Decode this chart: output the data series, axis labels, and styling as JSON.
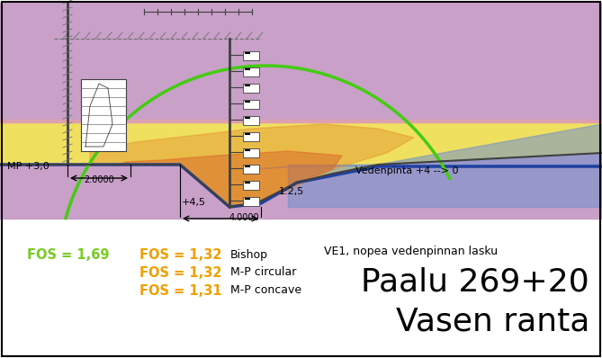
{
  "title_line1": "Vasen ranta",
  "title_line2": "Paalu 269+20",
  "subtitle": "VE1, nopea vedenpinnan lasku",
  "fos_orange1": "FOS = 1,31",
  "fos_label1": "M-P concave",
  "fos_orange2": "FOS = 1,32",
  "fos_label2": "M-P circular",
  "fos_green": "FOS = 1,69",
  "fos_orange3": "FOS = 1,32",
  "fos_label3": "Bishop",
  "mp_label": "MP +3,0",
  "dim_2000": "2.0000",
  "dim_4000": "4.0000",
  "level_45": "+4,5",
  "slope_label": "1:2,5",
  "water_label": "Vedenpinta +4 --> 0",
  "bg_color": "#ffffff",
  "soil_yellow": "#f0e060",
  "soil_pink": "#dda0b0",
  "soil_purple": "#c8a0c8",
  "water_blue_fill": "#7090cc",
  "water_blue_line": "#2040a0",
  "fill_red": "#d04020",
  "fill_orange": "#e08828",
  "line_green": "#44cc11",
  "color_orange": "#f0a000",
  "color_green": "#77cc22",
  "dark_gray": "#404040",
  "med_gray": "#707070"
}
